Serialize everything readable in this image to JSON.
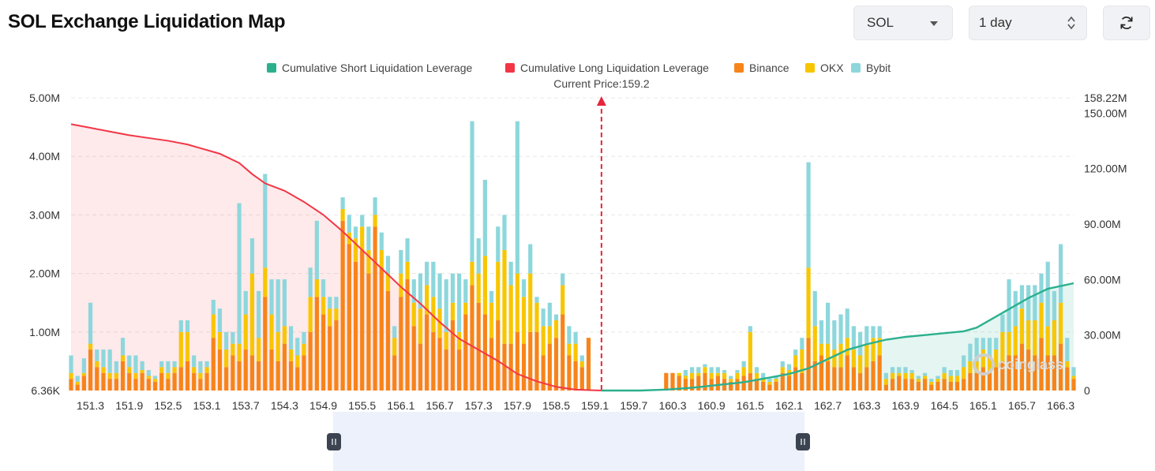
{
  "page": {
    "title": "SOL Exchange Liquidation Map"
  },
  "controls": {
    "coin": "SOL",
    "range": "1 day",
    "refresh_icon": "refresh-icon"
  },
  "colors": {
    "short": "#2bb08e",
    "long": "#f23645",
    "binance": "#f7841a",
    "okx": "#f8c600",
    "bybit": "#8dd7dc"
  },
  "chart_data": {
    "type": "bar",
    "title": "SOL Exchange Liquidation Map",
    "legend": [
      {
        "name": "Cumulative Short Liquidation Leverage",
        "color": "#2bb08e",
        "kind": "line"
      },
      {
        "name": "Cumulative Long Liquidation Leverage",
        "color": "#f23645",
        "kind": "line"
      },
      {
        "name": "Binance",
        "color": "#f7841a",
        "kind": "bar"
      },
      {
        "name": "OKX",
        "color": "#f8c600",
        "kind": "bar"
      },
      {
        "name": "Bybit",
        "color": "#8dd7dc",
        "kind": "bar"
      }
    ],
    "current_price_label": "Current Price:159.2",
    "current_price": 159.2,
    "x_range": [
      151.0,
      166.5
    ],
    "x_ticks": [
      "151.3",
      "151.9",
      "152.5",
      "153.1",
      "153.7",
      "154.3",
      "154.9",
      "155.5",
      "156.1",
      "156.7",
      "157.3",
      "157.9",
      "158.5",
      "159.1",
      "159.7",
      "160.3",
      "160.9",
      "161.5",
      "162.1",
      "162.7",
      "163.3",
      "163.9",
      "164.5",
      "165.1",
      "165.7",
      "166.3"
    ],
    "y_left": {
      "min": 0,
      "max": 5.0,
      "unit": "M",
      "ticks": [
        "6.36K",
        "1.00M",
        "2.00M",
        "3.00M",
        "4.00M",
        "5.00M"
      ]
    },
    "y_right": {
      "min": 0,
      "max": 158.22,
      "unit": "M",
      "ticks": [
        "0",
        "30.00M",
        "60.00M",
        "90.00M",
        "120.00M",
        "150.00M",
        "158.22M"
      ]
    },
    "bars": [
      {
        "x": 151.0,
        "binance": 0.2,
        "okx": 0.1,
        "bybit": 0.3
      },
      {
        "x": 151.1,
        "binance": 0.1,
        "okx": 0.05,
        "bybit": 0.1
      },
      {
        "x": 151.2,
        "binance": 0.25,
        "okx": 0.05,
        "bybit": 0.25
      },
      {
        "x": 151.3,
        "binance": 0.7,
        "okx": 0.1,
        "bybit": 0.7
      },
      {
        "x": 151.4,
        "binance": 0.4,
        "okx": 0.1,
        "bybit": 0.2
      },
      {
        "x": 151.5,
        "binance": 0.3,
        "okx": 0.1,
        "bybit": 0.3
      },
      {
        "x": 151.6,
        "binance": 0.2,
        "okx": 0.1,
        "bybit": 0.4
      },
      {
        "x": 151.7,
        "binance": 0.2,
        "okx": 0.1,
        "bybit": 0.2
      },
      {
        "x": 151.8,
        "binance": 0.5,
        "okx": 0.1,
        "bybit": 0.3
      },
      {
        "x": 151.9,
        "binance": 0.3,
        "okx": 0.1,
        "bybit": 0.2
      },
      {
        "x": 152.0,
        "binance": 0.2,
        "okx": 0.1,
        "bybit": 0.3
      },
      {
        "x": 152.1,
        "binance": 0.3,
        "okx": 0.05,
        "bybit": 0.15
      },
      {
        "x": 152.2,
        "binance": 0.2,
        "okx": 0.05,
        "bybit": 0.1
      },
      {
        "x": 152.3,
        "binance": 0.15,
        "okx": 0.05,
        "bybit": 0.05
      },
      {
        "x": 152.4,
        "binance": 0.3,
        "okx": 0.1,
        "bybit": 0.1
      },
      {
        "x": 152.5,
        "binance": 0.2,
        "okx": 0.1,
        "bybit": 0.2
      },
      {
        "x": 152.6,
        "binance": 0.3,
        "okx": 0.1,
        "bybit": 0.1
      },
      {
        "x": 152.7,
        "binance": 0.4,
        "okx": 0.6,
        "bybit": 0.2
      },
      {
        "x": 152.8,
        "binance": 0.5,
        "okx": 0.5,
        "bybit": 0.2
      },
      {
        "x": 152.9,
        "binance": 0.3,
        "okx": 0.1,
        "bybit": 0.2
      },
      {
        "x": 153.0,
        "binance": 0.2,
        "okx": 0.1,
        "bybit": 0.2
      },
      {
        "x": 153.1,
        "binance": 0.3,
        "okx": 0.1,
        "bybit": 0.1
      },
      {
        "x": 153.2,
        "binance": 0.9,
        "okx": 0.4,
        "bybit": 0.25
      },
      {
        "x": 153.3,
        "binance": 0.7,
        "okx": 0.3,
        "bybit": 0.4
      },
      {
        "x": 153.4,
        "binance": 0.4,
        "okx": 0.3,
        "bybit": 0.3
      },
      {
        "x": 153.5,
        "binance": 0.6,
        "okx": 0.2,
        "bybit": 0.2
      },
      {
        "x": 153.6,
        "binance": 0.5,
        "okx": 0.3,
        "bybit": 2.4
      },
      {
        "x": 153.7,
        "binance": 0.7,
        "okx": 0.6,
        "bybit": 0.4
      },
      {
        "x": 153.8,
        "binance": 0.6,
        "okx": 1.4,
        "bybit": 0.6
      },
      {
        "x": 153.9,
        "binance": 0.5,
        "okx": 0.4,
        "bybit": 0.8
      },
      {
        "x": 154.0,
        "binance": 1.6,
        "okx": 0.5,
        "bybit": 1.6
      },
      {
        "x": 154.1,
        "binance": 0.7,
        "okx": 0.6,
        "bybit": 0.6
      },
      {
        "x": 154.2,
        "binance": 0.5,
        "okx": 0.5,
        "bybit": 0.9
      },
      {
        "x": 154.3,
        "binance": 0.8,
        "okx": 0.3,
        "bybit": 0.8
      },
      {
        "x": 154.4,
        "binance": 0.5,
        "okx": 0.2,
        "bybit": 0.4
      },
      {
        "x": 154.5,
        "binance": 0.4,
        "okx": 0.2,
        "bybit": 0.3
      },
      {
        "x": 154.6,
        "binance": 0.6,
        "okx": 0.2,
        "bybit": 0.2
      },
      {
        "x": 154.7,
        "binance": 1.0,
        "okx": 0.6,
        "bybit": 0.5
      },
      {
        "x": 154.8,
        "binance": 1.6,
        "okx": 0.3,
        "bybit": 1.0
      },
      {
        "x": 154.9,
        "binance": 1.3,
        "okx": 0.3,
        "bybit": 0.3
      },
      {
        "x": 155.0,
        "binance": 1.1,
        "okx": 0.3,
        "bybit": 0.2
      },
      {
        "x": 155.1,
        "binance": 1.2,
        "okx": 0.2,
        "bybit": 0.2
      },
      {
        "x": 155.2,
        "binance": 2.9,
        "okx": 0.2,
        "bybit": 0.2
      },
      {
        "x": 155.3,
        "binance": 2.5,
        "okx": 0.2,
        "bybit": 0.3
      },
      {
        "x": 155.4,
        "binance": 2.2,
        "okx": 0.4,
        "bybit": 0.2
      },
      {
        "x": 155.5,
        "binance": 2.4,
        "okx": 0.4,
        "bybit": 0.2
      },
      {
        "x": 155.6,
        "binance": 2.0,
        "okx": 0.4,
        "bybit": 0.4
      },
      {
        "x": 155.7,
        "binance": 2.8,
        "okx": 0.2,
        "bybit": 0.3
      },
      {
        "x": 155.8,
        "binance": 2.1,
        "okx": 0.3,
        "bybit": 0.3
      },
      {
        "x": 155.9,
        "binance": 1.7,
        "okx": 0.3,
        "bybit": 0.3
      },
      {
        "x": 156.0,
        "binance": 0.6,
        "okx": 0.3,
        "bybit": 0.2
      },
      {
        "x": 156.1,
        "binance": 1.6,
        "okx": 0.4,
        "bybit": 0.4
      },
      {
        "x": 156.2,
        "binance": 1.9,
        "okx": 0.3,
        "bybit": 0.4
      },
      {
        "x": 156.3,
        "binance": 1.1,
        "okx": 0.4,
        "bybit": 0.4
      },
      {
        "x": 156.4,
        "binance": 0.8,
        "okx": 0.6,
        "bybit": 0.6
      },
      {
        "x": 156.5,
        "binance": 1.3,
        "okx": 0.5,
        "bybit": 0.4
      },
      {
        "x": 156.6,
        "binance": 1.0,
        "okx": 0.6,
        "bybit": 0.6
      },
      {
        "x": 156.7,
        "binance": 0.9,
        "okx": 0.5,
        "bybit": 0.6
      },
      {
        "x": 156.8,
        "binance": 0.7,
        "okx": 0.3,
        "bybit": 0.9
      },
      {
        "x": 156.9,
        "binance": 1.2,
        "okx": 0.3,
        "bybit": 0.5
      },
      {
        "x": 157.0,
        "binance": 0.7,
        "okx": 0.3,
        "bybit": 1.0
      },
      {
        "x": 157.1,
        "binance": 1.3,
        "okx": 0.2,
        "bybit": 0.4
      },
      {
        "x": 157.2,
        "binance": 1.8,
        "okx": 0.4,
        "bybit": 2.4
      },
      {
        "x": 157.3,
        "binance": 1.5,
        "okx": 0.5,
        "bybit": 0.6
      },
      {
        "x": 157.4,
        "binance": 1.3,
        "okx": 1.0,
        "bybit": 1.3
      },
      {
        "x": 157.5,
        "binance": 0.9,
        "okx": 0.6,
        "bybit": 0.2
      },
      {
        "x": 157.6,
        "binance": 1.2,
        "okx": 1.0,
        "bybit": 0.6
      },
      {
        "x": 157.7,
        "binance": 0.8,
        "okx": 1.6,
        "bybit": 0.6
      },
      {
        "x": 157.8,
        "binance": 0.8,
        "okx": 1.0,
        "bybit": 0.4
      },
      {
        "x": 157.9,
        "binance": 1.0,
        "okx": 1.0,
        "bybit": 2.6
      },
      {
        "x": 158.0,
        "binance": 0.8,
        "okx": 0.8,
        "bybit": 0.3
      },
      {
        "x": 158.1,
        "binance": 1.0,
        "okx": 1.0,
        "bybit": 0.5
      },
      {
        "x": 158.2,
        "binance": 1.0,
        "okx": 0.5,
        "bybit": 0.1
      },
      {
        "x": 158.3,
        "binance": 0.6,
        "okx": 0.5,
        "bybit": 0.3
      },
      {
        "x": 158.4,
        "binance": 0.8,
        "okx": 0.3,
        "bybit": 0.4
      },
      {
        "x": 158.5,
        "binance": 0.9,
        "okx": 0.3,
        "bybit": 0.1
      },
      {
        "x": 158.6,
        "binance": 1.3,
        "okx": 0.5,
        "bybit": 0.2
      },
      {
        "x": 158.7,
        "binance": 0.6,
        "okx": 0.2,
        "bybit": 0.3
      },
      {
        "x": 158.8,
        "binance": 0.5,
        "okx": 0.3,
        "bybit": 0.2
      },
      {
        "x": 158.9,
        "binance": 0.4,
        "okx": 0.1,
        "bybit": 0.1
      },
      {
        "x": 159.0,
        "binance": 0.9,
        "okx": 0.0,
        "bybit": 0.0
      },
      {
        "x": 160.2,
        "binance": 0.3,
        "okx": 0.0,
        "bybit": 0.0
      },
      {
        "x": 160.3,
        "binance": 0.3,
        "okx": 0.0,
        "bybit": 0.0
      },
      {
        "x": 160.4,
        "binance": 0.25,
        "okx": 0.05,
        "bybit": 0.0
      },
      {
        "x": 160.5,
        "binance": 0.2,
        "okx": 0.05,
        "bybit": 0.1
      },
      {
        "x": 160.6,
        "binance": 0.2,
        "okx": 0.1,
        "bybit": 0.1
      },
      {
        "x": 160.7,
        "binance": 0.25,
        "okx": 0.05,
        "bybit": 0.1
      },
      {
        "x": 160.8,
        "binance": 0.3,
        "okx": 0.1,
        "bybit": 0.05
      },
      {
        "x": 160.9,
        "binance": 0.2,
        "okx": 0.1,
        "bybit": 0.1
      },
      {
        "x": 161.0,
        "binance": 0.25,
        "okx": 0.05,
        "bybit": 0.1
      },
      {
        "x": 161.1,
        "binance": 0.2,
        "okx": 0.1,
        "bybit": 0.05
      },
      {
        "x": 161.2,
        "binance": 0.15,
        "okx": 0.05,
        "bybit": 0.05
      },
      {
        "x": 161.3,
        "binance": 0.2,
        "okx": 0.1,
        "bybit": 0.05
      },
      {
        "x": 161.4,
        "binance": 0.25,
        "okx": 0.15,
        "bybit": 0.1
      },
      {
        "x": 161.5,
        "binance": 0.3,
        "okx": 0.7,
        "bybit": 0.1
      },
      {
        "x": 161.6,
        "binance": 0.2,
        "okx": 0.1,
        "bybit": 0.1
      },
      {
        "x": 161.7,
        "binance": 0.15,
        "okx": 0.05,
        "bybit": 0.1
      },
      {
        "x": 161.8,
        "binance": 0.1,
        "okx": 0.05,
        "bybit": 0.05
      },
      {
        "x": 161.9,
        "binance": 0.15,
        "okx": 0.05,
        "bybit": 0.05
      },
      {
        "x": 162.0,
        "binance": 0.3,
        "okx": 0.1,
        "bybit": 0.1
      },
      {
        "x": 162.1,
        "binance": 0.25,
        "okx": 0.1,
        "bybit": 0.1
      },
      {
        "x": 162.2,
        "binance": 0.4,
        "okx": 0.2,
        "bybit": 0.1
      },
      {
        "x": 162.3,
        "binance": 0.3,
        "okx": 0.4,
        "bybit": 0.2
      },
      {
        "x": 162.4,
        "binance": 0.9,
        "okx": 1.2,
        "bybit": 1.8
      },
      {
        "x": 162.5,
        "binance": 0.5,
        "okx": 0.6,
        "bybit": 0.6
      },
      {
        "x": 162.6,
        "binance": 0.6,
        "okx": 0.2,
        "bybit": 0.4
      },
      {
        "x": 162.7,
        "binance": 0.5,
        "okx": 0.3,
        "bybit": 0.7
      },
      {
        "x": 162.8,
        "binance": 0.4,
        "okx": 0.3,
        "bybit": 0.5
      },
      {
        "x": 162.9,
        "binance": 0.4,
        "okx": 0.4,
        "bybit": 0.5
      },
      {
        "x": 163.0,
        "binance": 0.6,
        "okx": 0.3,
        "bybit": 0.5
      },
      {
        "x": 163.1,
        "binance": 0.4,
        "okx": 0.3,
        "bybit": 0.4
      },
      {
        "x": 163.2,
        "binance": 0.3,
        "okx": 0.3,
        "bybit": 0.4
      },
      {
        "x": 163.3,
        "binance": 0.4,
        "okx": 0.4,
        "bybit": 0.3
      },
      {
        "x": 163.4,
        "binance": 0.5,
        "okx": 0.4,
        "bybit": 0.2
      },
      {
        "x": 163.5,
        "binance": 0.6,
        "okx": 0.3,
        "bybit": 0.2
      },
      {
        "x": 163.6,
        "binance": 0.1,
        "okx": 0.1,
        "bybit": 0.1
      },
      {
        "x": 163.7,
        "binance": 0.2,
        "okx": 0.1,
        "bybit": 0.1
      },
      {
        "x": 163.8,
        "binance": 0.25,
        "okx": 0.05,
        "bybit": 0.1
      },
      {
        "x": 163.9,
        "binance": 0.2,
        "okx": 0.1,
        "bybit": 0.1
      },
      {
        "x": 164.0,
        "binance": 0.2,
        "okx": 0.1,
        "bybit": 0.05
      },
      {
        "x": 164.1,
        "binance": 0.15,
        "okx": 0.05,
        "bybit": 0.05
      },
      {
        "x": 164.2,
        "binance": 0.2,
        "okx": 0.05,
        "bybit": 0.05
      },
      {
        "x": 164.3,
        "binance": 0.1,
        "okx": 0.05,
        "bybit": 0.05
      },
      {
        "x": 164.4,
        "binance": 0.15,
        "okx": 0.05,
        "bybit": 0.05
      },
      {
        "x": 164.5,
        "binance": 0.2,
        "okx": 0.1,
        "bybit": 0.1
      },
      {
        "x": 164.6,
        "binance": 0.15,
        "okx": 0.1,
        "bybit": 0.1
      },
      {
        "x": 164.7,
        "binance": 0.15,
        "okx": 0.1,
        "bybit": 0.1
      },
      {
        "x": 164.8,
        "binance": 0.2,
        "okx": 0.2,
        "bybit": 0.2
      },
      {
        "x": 164.9,
        "binance": 0.3,
        "okx": 0.2,
        "bybit": 0.3
      },
      {
        "x": 165.0,
        "binance": 0.3,
        "okx": 0.2,
        "bybit": 0.4
      },
      {
        "x": 165.1,
        "binance": 0.4,
        "okx": 0.3,
        "bybit": 0.2
      },
      {
        "x": 165.2,
        "binance": 0.3,
        "okx": 0.3,
        "bybit": 0.3
      },
      {
        "x": 165.3,
        "binance": 0.4,
        "okx": 0.3,
        "bybit": 0.2
      },
      {
        "x": 165.4,
        "binance": 0.5,
        "okx": 0.5,
        "bybit": 0.3
      },
      {
        "x": 165.5,
        "binance": 0.6,
        "okx": 0.4,
        "bybit": 0.9
      },
      {
        "x": 165.6,
        "binance": 0.6,
        "okx": 0.5,
        "bybit": 0.6
      },
      {
        "x": 165.7,
        "binance": 0.8,
        "okx": 0.6,
        "bybit": 0.4
      },
      {
        "x": 165.8,
        "binance": 0.7,
        "okx": 0.5,
        "bybit": 0.6
      },
      {
        "x": 165.9,
        "binance": 0.6,
        "okx": 0.6,
        "bybit": 0.6
      },
      {
        "x": 166.0,
        "binance": 0.9,
        "okx": 0.6,
        "bybit": 0.5
      },
      {
        "x": 166.1,
        "binance": 0.6,
        "okx": 0.5,
        "bybit": 1.1
      },
      {
        "x": 166.2,
        "binance": 0.6,
        "okx": 0.6,
        "bybit": 0.5
      },
      {
        "x": 166.3,
        "binance": 0.8,
        "okx": 0.7,
        "bybit": 1.0
      },
      {
        "x": 166.4,
        "binance": 0.4,
        "okx": 0.1,
        "bybit": 0.4
      },
      {
        "x": 166.5,
        "binance": 0.2,
        "okx": 0.05,
        "bybit": 0.15
      }
    ],
    "long_curve": [
      [
        151.0,
        144
      ],
      [
        151.3,
        142
      ],
      [
        151.6,
        140
      ],
      [
        151.9,
        138
      ],
      [
        152.2,
        136.5
      ],
      [
        152.5,
        135
      ],
      [
        152.8,
        133
      ],
      [
        153.0,
        131
      ],
      [
        153.3,
        128
      ],
      [
        153.6,
        123
      ],
      [
        153.8,
        117
      ],
      [
        154.0,
        112
      ],
      [
        154.3,
        108
      ],
      [
        154.6,
        102
      ],
      [
        154.9,
        95
      ],
      [
        155.2,
        86
      ],
      [
        155.5,
        76
      ],
      [
        155.8,
        66
      ],
      [
        156.1,
        56
      ],
      [
        156.4,
        47
      ],
      [
        156.7,
        37
      ],
      [
        157.0,
        28
      ],
      [
        157.3,
        22
      ],
      [
        157.6,
        16
      ],
      [
        157.9,
        9
      ],
      [
        158.2,
        5
      ],
      [
        158.5,
        2
      ],
      [
        158.8,
        0.5
      ],
      [
        159.2,
        0
      ]
    ],
    "short_curve": [
      [
        159.2,
        0
      ],
      [
        159.8,
        0
      ],
      [
        160.2,
        0.5
      ],
      [
        160.6,
        1.5
      ],
      [
        161.0,
        3
      ],
      [
        161.4,
        4.5
      ],
      [
        161.8,
        7
      ],
      [
        162.1,
        9
      ],
      [
        162.4,
        12
      ],
      [
        162.7,
        17
      ],
      [
        163.0,
        22
      ],
      [
        163.3,
        25
      ],
      [
        163.6,
        27.5
      ],
      [
        163.9,
        29
      ],
      [
        164.2,
        30
      ],
      [
        164.5,
        31
      ],
      [
        164.8,
        32
      ],
      [
        165.0,
        34
      ],
      [
        165.2,
        38
      ],
      [
        165.5,
        44
      ],
      [
        165.8,
        50
      ],
      [
        166.1,
        55
      ],
      [
        166.5,
        58
      ]
    ]
  },
  "watermark": "coinglass"
}
